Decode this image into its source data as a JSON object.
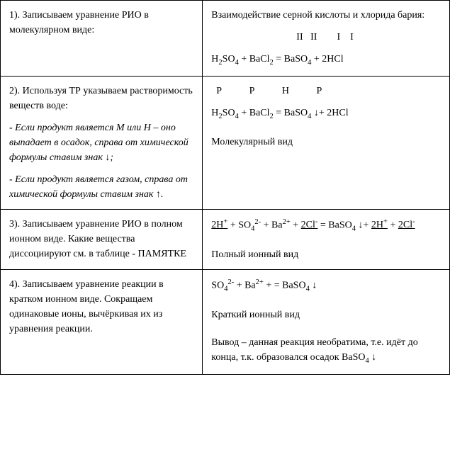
{
  "row1": {
    "left": "1). Записываем уравнение РИО в молекулярном виде:",
    "right_title": "Взаимодействие серной кислоты и хлорида бария:"
  },
  "row2": {
    "left_line1": "2). Используя ТР указываем растворимость веществ воде:",
    "left_line2": "- Если продукт является М или Н – оно выпадает в осадок, справа от химической формулы ставим знак ↓;",
    "left_line3": "- Если продукт является газом, справа от химической формулы ставим знак ↑.",
    "right_caption": "Молекулярный вид"
  },
  "row3": {
    "left": "3). Записываем уравнение РИО в полном ионном виде. Какие вещества диссоциируют см. в таблице - ПАМЯТКЕ",
    "right_caption": "Полный ионный вид"
  },
  "row4": {
    "left": "4). Записываем уравнение реакции в кратком ионном виде. Сокращаем одинаковые ионы, вычёркивая их из уравнения реакции.",
    "right_caption": "Краткий  ионный вид",
    "right_conclusion_pre": "Вывод – данная реакция необратима, т.е. идёт до конца, т.к. образовался осадок "
  },
  "labels": {
    "sol_P": "Р",
    "sol_H": "Н",
    "rom_I": "I",
    "rom_II": "II"
  }
}
